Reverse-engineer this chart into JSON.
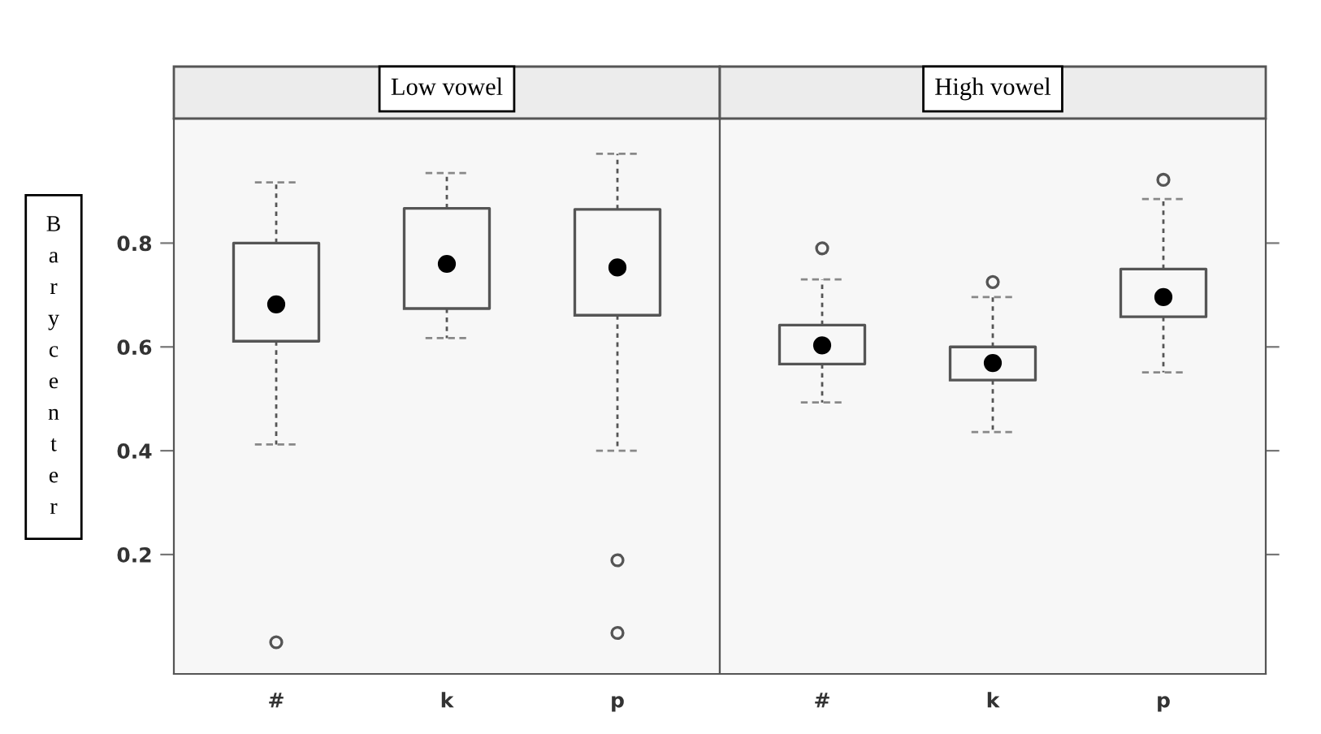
{
  "chart_data": [
    {
      "type": "box",
      "title": "Low vowel",
      "ylabel": "Barycenter",
      "categories": [
        "#",
        "k",
        "p"
      ],
      "boxes": [
        {
          "low": 0.412,
          "q1": 0.611,
          "median": 0.682,
          "q3": 0.8,
          "high": 0.917,
          "outliers": [
            0.031
          ]
        },
        {
          "low": 0.617,
          "q1": 0.674,
          "median": 0.76,
          "q3": 0.867,
          "high": 0.935
        },
        {
          "low": 0.4,
          "q1": 0.661,
          "median": 0.753,
          "q3": 0.865,
          "high": 0.972,
          "outliers": [
            0.189,
            0.049
          ]
        }
      ],
      "ylim": [
        -0.03,
        1.04
      ],
      "yticks": [
        0.2,
        0.4,
        0.6,
        0.8
      ]
    },
    {
      "type": "box",
      "title": "High vowel",
      "categories": [
        "#",
        "k",
        "p"
      ],
      "boxes": [
        {
          "low": 0.493,
          "q1": 0.567,
          "median": 0.603,
          "q3": 0.642,
          "high": 0.73,
          "outliers": [
            0.79
          ]
        },
        {
          "low": 0.436,
          "q1": 0.536,
          "median": 0.569,
          "q3": 0.6,
          "high": 0.696,
          "outliers": [
            0.725
          ]
        },
        {
          "low": 0.551,
          "q1": 0.658,
          "median": 0.696,
          "q3": 0.75,
          "high": 0.885,
          "outliers": [
            0.922
          ]
        }
      ],
      "ylim": [
        -0.03,
        1.04
      ],
      "yticks": [
        {
          "value": 0.2,
          "label": null
        },
        {
          "value": 0.4,
          "label": null
        },
        {
          "value": 0.6,
          "label": null
        },
        {
          "value": 0.8,
          "label": null
        }
      ],
      "tick_labels": "x"
    }
  ]
}
